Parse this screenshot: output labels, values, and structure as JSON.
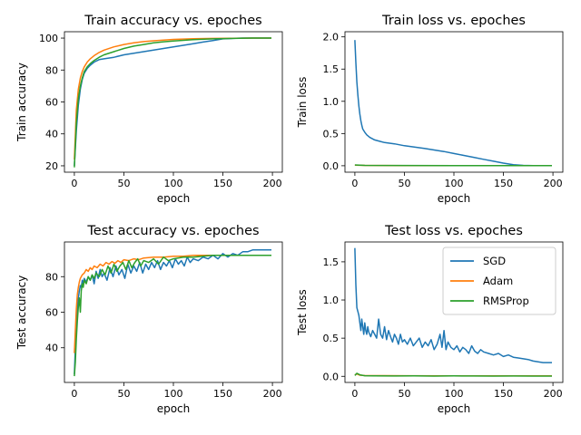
{
  "colors": {
    "SGD": "#1f77b4",
    "Adam": "#ff7f0e",
    "RMSProp": "#2ca02c"
  },
  "chart_data": [
    {
      "type": "line",
      "title": "Train accuracy vs. epoches",
      "xlabel": "epoch",
      "ylabel": "Train accuracy",
      "xlim": [
        -10,
        210
      ],
      "ylim": [
        16,
        104
      ],
      "xticks": [
        0,
        50,
        100,
        150,
        200
      ],
      "yticks": [
        20,
        40,
        60,
        80,
        100
      ],
      "legend": null,
      "series": [
        {
          "name": "SGD",
          "x": [
            0,
            2,
            4,
            6,
            8,
            10,
            13,
            16,
            20,
            25,
            30,
            40,
            50,
            60,
            70,
            80,
            90,
            100,
            110,
            120,
            130,
            140,
            150,
            160,
            170,
            180,
            190,
            199
          ],
          "y": [
            20,
            42,
            58,
            68,
            74,
            78,
            81,
            83,
            85,
            86.5,
            87,
            88,
            89.5,
            90.5,
            91.5,
            92.5,
            93.5,
            94.5,
            95.5,
            96.5,
            97.5,
            98.5,
            99.5,
            99.8,
            100,
            100,
            100,
            100
          ]
        },
        {
          "name": "Adam",
          "x": [
            0,
            2,
            4,
            6,
            8,
            10,
            13,
            16,
            20,
            25,
            30,
            40,
            50,
            60,
            70,
            80,
            90,
            100,
            120,
            140,
            160,
            180,
            199
          ],
          "y": [
            24,
            55,
            68,
            75,
            79,
            82,
            85,
            87,
            89,
            91,
            92.5,
            94.5,
            96,
            97,
            97.8,
            98.3,
            98.8,
            99.2,
            99.6,
            99.8,
            99.9,
            100,
            100
          ]
        },
        {
          "name": "RMSProp",
          "x": [
            0,
            2,
            4,
            6,
            8,
            10,
            13,
            16,
            20,
            25,
            30,
            40,
            50,
            60,
            70,
            80,
            90,
            100,
            120,
            140,
            160,
            180,
            199
          ],
          "y": [
            19,
            47,
            62,
            70,
            75,
            79,
            82,
            84,
            86,
            88,
            89.5,
            91.5,
            93.5,
            95,
            96,
            97,
            97.7,
            98.2,
            99,
            99.5,
            99.8,
            100,
            100
          ]
        }
      ]
    },
    {
      "type": "line",
      "title": "Train loss vs. epoches",
      "xlabel": "epoch",
      "ylabel": "Train loss",
      "xlim": [
        -10,
        210
      ],
      "ylim": [
        -0.1,
        2.08
      ],
      "xticks": [
        0,
        50,
        100,
        150,
        200
      ],
      "yticks": [
        0.0,
        0.5,
        1.0,
        1.5,
        2.0
      ],
      "yfmt": 1,
      "legend": null,
      "series": [
        {
          "name": "SGD",
          "x": [
            0,
            1,
            2,
            3,
            4,
            5,
            6,
            7,
            8,
            10,
            12,
            15,
            20,
            25,
            30,
            40,
            50,
            60,
            70,
            80,
            90,
            100,
            110,
            120,
            130,
            140,
            150,
            160,
            170,
            180,
            190,
            199
          ],
          "y": [
            1.95,
            1.6,
            1.3,
            1.1,
            0.93,
            0.8,
            0.7,
            0.63,
            0.57,
            0.52,
            0.48,
            0.44,
            0.4,
            0.38,
            0.36,
            0.34,
            0.31,
            0.29,
            0.27,
            0.245,
            0.22,
            0.19,
            0.16,
            0.13,
            0.1,
            0.07,
            0.04,
            0.015,
            0.005,
            0.002,
            0.001,
            0.001
          ]
        },
        {
          "name": "Adam",
          "x": [
            0,
            10,
            50,
            100,
            150,
            199
          ],
          "y": [
            0.01,
            0.005,
            0.003,
            0.002,
            0.001,
            0.001
          ]
        },
        {
          "name": "RMSProp",
          "x": [
            0,
            10,
            50,
            100,
            150,
            199
          ],
          "y": [
            0.012,
            0.006,
            0.004,
            0.003,
            0.002,
            0.002
          ]
        }
      ]
    },
    {
      "type": "line",
      "title": "Test accuracy vs. epoches",
      "xlabel": "epoch",
      "ylabel": "Test accuracy",
      "xlim": [
        -10,
        210
      ],
      "ylim": [
        20.5,
        99.5
      ],
      "xticks": [
        0,
        50,
        100,
        150,
        200
      ],
      "yticks": [
        40,
        60,
        80
      ],
      "legend": null,
      "series": [
        {
          "name": "SGD",
          "x": [
            0,
            1,
            2,
            3,
            4,
            5,
            6,
            7,
            8,
            9,
            10,
            12,
            14,
            16,
            18,
            20,
            22,
            24,
            26,
            28,
            30,
            33,
            36,
            39,
            42,
            45,
            48,
            51,
            54,
            57,
            60,
            63,
            66,
            69,
            72,
            75,
            78,
            81,
            84,
            87,
            90,
            93,
            96,
            99,
            102,
            105,
            108,
            111,
            114,
            117,
            120,
            125,
            130,
            135,
            140,
            145,
            150,
            155,
            160,
            165,
            170,
            175,
            180,
            185,
            190,
            195,
            199
          ],
          "y": [
            25,
            40,
            55,
            63,
            68,
            72,
            75,
            74,
            78,
            76,
            79,
            77,
            80,
            78,
            81,
            76,
            83,
            79,
            84,
            80,
            82,
            78,
            85,
            80,
            86,
            81,
            84,
            79,
            87,
            82,
            86,
            83,
            88,
            82,
            87,
            84,
            88,
            85,
            89,
            84,
            88,
            86,
            89,
            85,
            90,
            87,
            89,
            86,
            91,
            88,
            90,
            89,
            91,
            90,
            92,
            90,
            93,
            91,
            93,
            92,
            94,
            94,
            95,
            95,
            95,
            95,
            95
          ]
        },
        {
          "name": "Adam",
          "x": [
            0,
            1,
            2,
            3,
            4,
            5,
            6,
            7,
            8,
            10,
            12,
            14,
            16,
            18,
            20,
            23,
            26,
            29,
            32,
            35,
            38,
            41,
            44,
            47,
            50,
            55,
            60,
            65,
            70,
            80,
            90,
            100,
            110,
            120,
            130,
            140,
            150,
            160,
            170,
            180,
            190,
            199
          ],
          "y": [
            37,
            50,
            62,
            70,
            74,
            77,
            79,
            80,
            81,
            82,
            84,
            83,
            85,
            84,
            86,
            85,
            87,
            86,
            88,
            87,
            88.5,
            87.5,
            89,
            88,
            89.5,
            89,
            90,
            89.5,
            90.5,
            91,
            91,
            91.5,
            91.5,
            92,
            92,
            92,
            92,
            92,
            92,
            92,
            92,
            92
          ]
        },
        {
          "name": "RMSProp",
          "x": [
            0,
            1,
            2,
            3,
            4,
            5,
            6,
            7,
            8,
            9,
            10,
            12,
            14,
            16,
            18,
            20,
            22,
            25,
            28,
            31,
            34,
            37,
            40,
            43,
            46,
            49,
            52,
            55,
            58,
            61,
            64,
            67,
            70,
            75,
            80,
            85,
            90,
            95,
            100,
            110,
            120,
            130,
            140,
            150,
            160,
            170,
            180,
            190,
            199
          ],
          "y": [
            24,
            32,
            45,
            55,
            63,
            68,
            60,
            72,
            76,
            74,
            78,
            76,
            80,
            78,
            81,
            79,
            82,
            80,
            84,
            81,
            86,
            82,
            87,
            83,
            86,
            88,
            84,
            89,
            85,
            88,
            90,
            86,
            89,
            88,
            90,
            87,
            91,
            89,
            90,
            91,
            91,
            91.5,
            92,
            92,
            92,
            92,
            92,
            92,
            92
          ]
        }
      ]
    },
    {
      "type": "line",
      "title": "Test loss vs. epoches",
      "xlabel": "epoch",
      "ylabel": "Test loss",
      "xlim": [
        -10,
        210
      ],
      "ylim": [
        -0.08,
        1.76
      ],
      "xticks": [
        0,
        50,
        100,
        150,
        200
      ],
      "yticks": [
        0.0,
        0.5,
        1.0,
        1.5
      ],
      "yfmt": 1,
      "legend": "upper right",
      "series": [
        {
          "name": "SGD",
          "x": [
            0,
            1,
            2,
            3,
            4,
            5,
            6,
            7,
            8,
            9,
            10,
            11,
            12,
            13,
            14,
            16,
            18,
            20,
            22,
            24,
            26,
            28,
            30,
            32,
            34,
            36,
            38,
            40,
            42,
            44,
            46,
            48,
            50,
            53,
            56,
            59,
            62,
            65,
            68,
            71,
            74,
            77,
            80,
            83,
            86,
            88,
            90,
            92,
            94,
            97,
            100,
            103,
            106,
            109,
            112,
            115,
            118,
            121,
            124,
            127,
            130,
            135,
            140,
            145,
            150,
            155,
            160,
            165,
            170,
            175,
            180,
            185,
            190,
            195,
            199
          ],
          "y": [
            1.68,
            1.2,
            0.9,
            0.85,
            0.8,
            0.7,
            0.6,
            0.75,
            0.65,
            0.55,
            0.7,
            0.6,
            0.55,
            0.65,
            0.58,
            0.52,
            0.6,
            0.55,
            0.5,
            0.75,
            0.55,
            0.5,
            0.65,
            0.48,
            0.6,
            0.52,
            0.45,
            0.55,
            0.5,
            0.42,
            0.55,
            0.45,
            0.48,
            0.42,
            0.5,
            0.4,
            0.45,
            0.5,
            0.38,
            0.45,
            0.4,
            0.48,
            0.35,
            0.42,
            0.55,
            0.38,
            0.6,
            0.35,
            0.45,
            0.38,
            0.35,
            0.4,
            0.32,
            0.38,
            0.35,
            0.3,
            0.4,
            0.33,
            0.3,
            0.35,
            0.32,
            0.3,
            0.28,
            0.3,
            0.26,
            0.28,
            0.25,
            0.24,
            0.23,
            0.22,
            0.2,
            0.19,
            0.18,
            0.18,
            0.18
          ]
        },
        {
          "name": "Adam",
          "x": [
            0,
            2,
            5,
            10,
            50,
            100,
            150,
            199
          ],
          "y": [
            0.02,
            0.03,
            0.015,
            0.01,
            0.008,
            0.006,
            0.005,
            0.005
          ]
        },
        {
          "name": "RMSProp",
          "x": [
            0,
            2,
            5,
            10,
            20,
            40,
            60,
            80,
            100,
            120,
            140,
            160,
            180,
            199
          ],
          "y": [
            0.01,
            0.04,
            0.02,
            0.008,
            0.005,
            0.004,
            0.006,
            0.003,
            0.005,
            0.004,
            0.003,
            0.004,
            0.003,
            0.003
          ]
        }
      ]
    }
  ]
}
